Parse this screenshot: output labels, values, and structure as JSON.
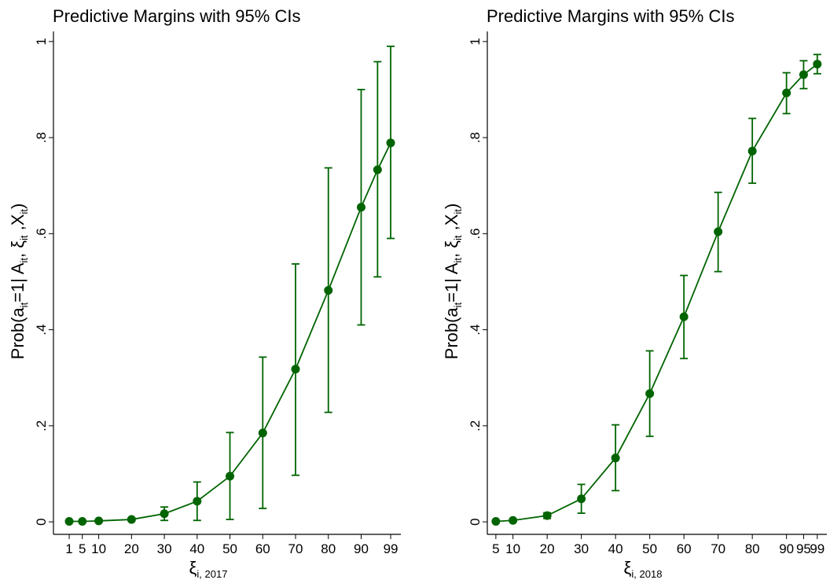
{
  "chart_data": [
    {
      "type": "line",
      "title": "Predictive Margins with 95% CIs",
      "xlabel": [
        {
          "text": "ξ",
          "sub": false
        },
        {
          "text": "i, 2017",
          "sub": true
        }
      ],
      "ylabel": [
        {
          "text": "Prob(a",
          "sub": false
        },
        {
          "text": "it",
          "sub": true
        },
        {
          "text": "=1| A",
          "sub": false
        },
        {
          "text": "it",
          "sub": true
        },
        {
          "text": ", ξ",
          "sub": false
        },
        {
          "text": "it",
          "sub": true
        },
        {
          "text": " ,X",
          "sub": false
        },
        {
          "text": "it",
          "sub": true
        },
        {
          "text": ")",
          "sub": false
        }
      ],
      "x": [
        1,
        5,
        10,
        20,
        30,
        40,
        50,
        60,
        70,
        80,
        90,
        95,
        99
      ],
      "series": [
        {
          "color": "#006400",
          "values": [
            0.001,
            0.001,
            0.002,
            0.005,
            0.017,
            0.043,
            0.095,
            0.185,
            0.318,
            0.482,
            0.655,
            0.733,
            0.789
          ],
          "lower": [
            0.0,
            0.0,
            0.0,
            0.002,
            0.003,
            0.003,
            0.005,
            0.028,
            0.097,
            0.228,
            0.41,
            0.51,
            0.59
          ],
          "upper": [
            0.002,
            0.002,
            0.004,
            0.008,
            0.031,
            0.083,
            0.186,
            0.343,
            0.537,
            0.737,
            0.9,
            0.958,
            0.99
          ]
        }
      ],
      "xlim": [
        -3.8,
        102.1
      ],
      "ylim": [
        -0.026,
        1.021
      ],
      "xticks": [
        1,
        5,
        10,
        20,
        30,
        40,
        50,
        60,
        70,
        80,
        90,
        99
      ],
      "yticks": [
        0,
        {
          "value": 0.2,
          "label": ".2"
        },
        {
          "value": 0.4,
          "label": ".4"
        },
        {
          "value": 0.6,
          "label": ".6"
        },
        {
          "value": 0.8,
          "label": ".8"
        },
        1
      ]
    },
    {
      "type": "line",
      "title": "Predictive Margins with 95% CIs",
      "xlabel": [
        {
          "text": "ξ",
          "sub": false
        },
        {
          "text": "i, 2018",
          "sub": true
        }
      ],
      "ylabel": [
        {
          "text": "Prob(a",
          "sub": false
        },
        {
          "text": "it",
          "sub": true
        },
        {
          "text": "=1| A",
          "sub": false
        },
        {
          "text": "it",
          "sub": true
        },
        {
          "text": ", ξ",
          "sub": false
        },
        {
          "text": "it",
          "sub": true
        },
        {
          "text": " ,X",
          "sub": false
        },
        {
          "text": "it",
          "sub": true
        },
        {
          "text": ")",
          "sub": false
        }
      ],
      "x": [
        5,
        10,
        20,
        30,
        40,
        50,
        60,
        70,
        80,
        90,
        95,
        99
      ],
      "series": [
        {
          "color": "#006400",
          "values": [
            0.001,
            0.003,
            0.013,
            0.048,
            0.133,
            0.267,
            0.427,
            0.604,
            0.772,
            0.893,
            0.931,
            0.953
          ],
          "lower": [
            0.0,
            0.001,
            0.007,
            0.018,
            0.065,
            0.178,
            0.34,
            0.521,
            0.705,
            0.85,
            0.902,
            0.933
          ],
          "upper": [
            0.002,
            0.005,
            0.019,
            0.078,
            0.202,
            0.356,
            0.513,
            0.686,
            0.84,
            0.935,
            0.96,
            0.973
          ]
        }
      ],
      "xlim": [
        2.5,
        101.8
      ],
      "ylim": [
        -0.026,
        1.021
      ],
      "xticks": [
        5,
        10,
        20,
        30,
        40,
        50,
        60,
        70,
        80,
        90,
        95,
        99
      ],
      "yticks": [
        0,
        {
          "value": 0.2,
          "label": ".2"
        },
        {
          "value": 0.4,
          "label": ".4"
        },
        {
          "value": 0.6,
          "label": ".6"
        },
        {
          "value": 0.8,
          "label": ".8"
        },
        1
      ]
    }
  ]
}
